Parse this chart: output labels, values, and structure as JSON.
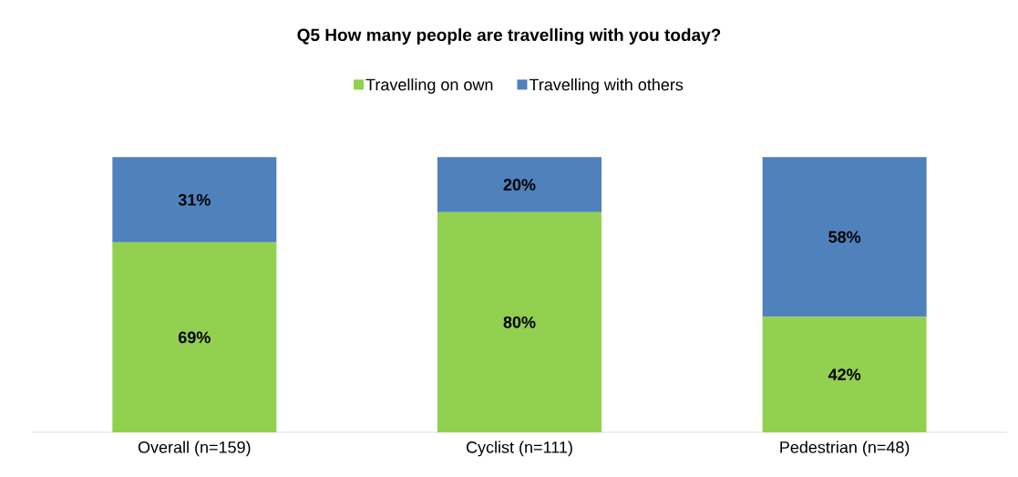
{
  "chart_data": {
    "type": "bar",
    "title": "Q5 How many people are travelling with you today?",
    "categories": [
      "Overall (n=159)",
      "Cyclist (n=111)",
      "Pedestrian (n=48)"
    ],
    "stacked": true,
    "legend": "top",
    "series": [
      {
        "name": "Travelling on own",
        "color": "#92d050",
        "values": [
          69,
          80,
          42
        ],
        "value_labels": [
          "69%",
          "80%",
          "42%"
        ]
      },
      {
        "name": "Travelling with others",
        "color": "#4f81bd",
        "values": [
          31,
          20,
          58
        ],
        "value_labels": [
          "31%",
          "20%",
          "58%"
        ]
      }
    ]
  }
}
